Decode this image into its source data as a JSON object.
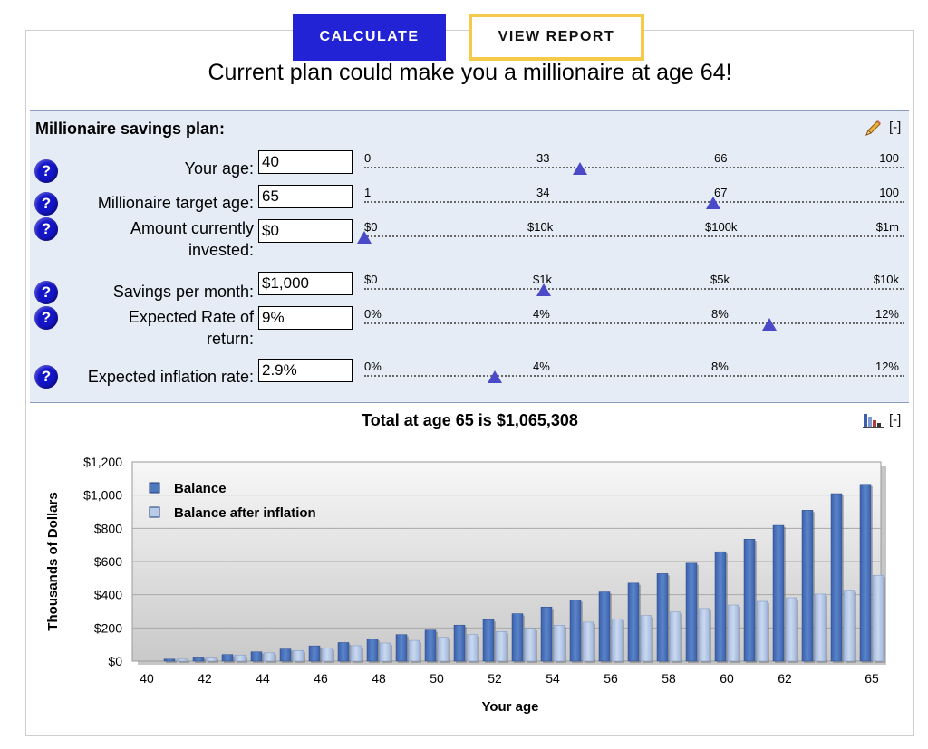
{
  "buttons": {
    "calculate": "CALCULATE",
    "view_report": "VIEW REPORT"
  },
  "headline": "Current plan could make you a millionaire at age 64!",
  "panel": {
    "title": "Millionaire savings plan:",
    "collapse_label": "[-]",
    "help_label": "?",
    "rows": [
      {
        "label": "Your age:",
        "value": "40",
        "ticks": [
          "0",
          "33",
          "66",
          "100"
        ],
        "thumb_fraction": 0.4
      },
      {
        "label": "Millionaire target age:",
        "value": "65",
        "ticks": [
          "1",
          "34",
          "67",
          "100"
        ],
        "thumb_fraction": 0.646
      },
      {
        "label": "Amount currently invested:",
        "value": "$0",
        "ticks": [
          "$0",
          "$10k",
          "$100k",
          "$1m"
        ],
        "thumb_fraction": 0.0
      },
      {
        "label": "Savings per month:",
        "value": "$1,000",
        "ticks": [
          "$0",
          "$1k",
          "$5k",
          "$10k"
        ],
        "thumb_fraction": 0.333
      },
      {
        "label": "Expected Rate of return:",
        "value": "9%",
        "ticks": [
          "0%",
          "4%",
          "8%",
          "12%"
        ],
        "thumb_fraction": 0.75
      },
      {
        "label": "Expected inflation rate:",
        "value": "2.9%",
        "ticks": [
          "0%",
          "4%",
          "8%",
          "12%"
        ],
        "thumb_fraction": 0.242
      }
    ]
  },
  "total_text": "Total at age 65 is $1,065,308",
  "chart_collapse_label": "[-]",
  "colors": {
    "balance": "#4f79bd",
    "after_inflation": "#b8cbe8",
    "accent": "#2323d6",
    "report_border": "#f5c94a"
  },
  "chart_data": {
    "type": "bar",
    "xlabel": "Your age",
    "ylabel": "Thousands of Dollars",
    "ylim": [
      0,
      1200
    ],
    "y_ticks": [
      "$0",
      "$200",
      "$400",
      "$600",
      "$800",
      "$1,000",
      "$1,200"
    ],
    "x_tick_labels": [
      "40",
      "42",
      "44",
      "46",
      "48",
      "50",
      "52",
      "54",
      "56",
      "58",
      "60",
      "62",
      "65"
    ],
    "legend_placement": "top-left",
    "categories": [
      41,
      42,
      43,
      44,
      45,
      46,
      47,
      48,
      49,
      50,
      51,
      52,
      53,
      54,
      55,
      56,
      57,
      58,
      59,
      60,
      61,
      62,
      63,
      64,
      65
    ],
    "series": [
      {
        "name": "Balance",
        "values": [
          12,
          25,
          40,
          56,
          73,
          92,
          112,
          135,
          160,
          187,
          217,
          250,
          286,
          326,
          369,
          417,
          470,
          527,
          590,
          659,
          735,
          818,
          909,
          1009,
          1065
        ]
      },
      {
        "name": "Balance after inflation",
        "values": [
          12,
          24,
          37,
          50,
          64,
          78,
          93,
          109,
          125,
          143,
          160,
          178,
          197,
          216,
          235,
          255,
          275,
          296,
          317,
          338,
          360,
          382,
          404,
          427,
          517
        ]
      }
    ]
  }
}
